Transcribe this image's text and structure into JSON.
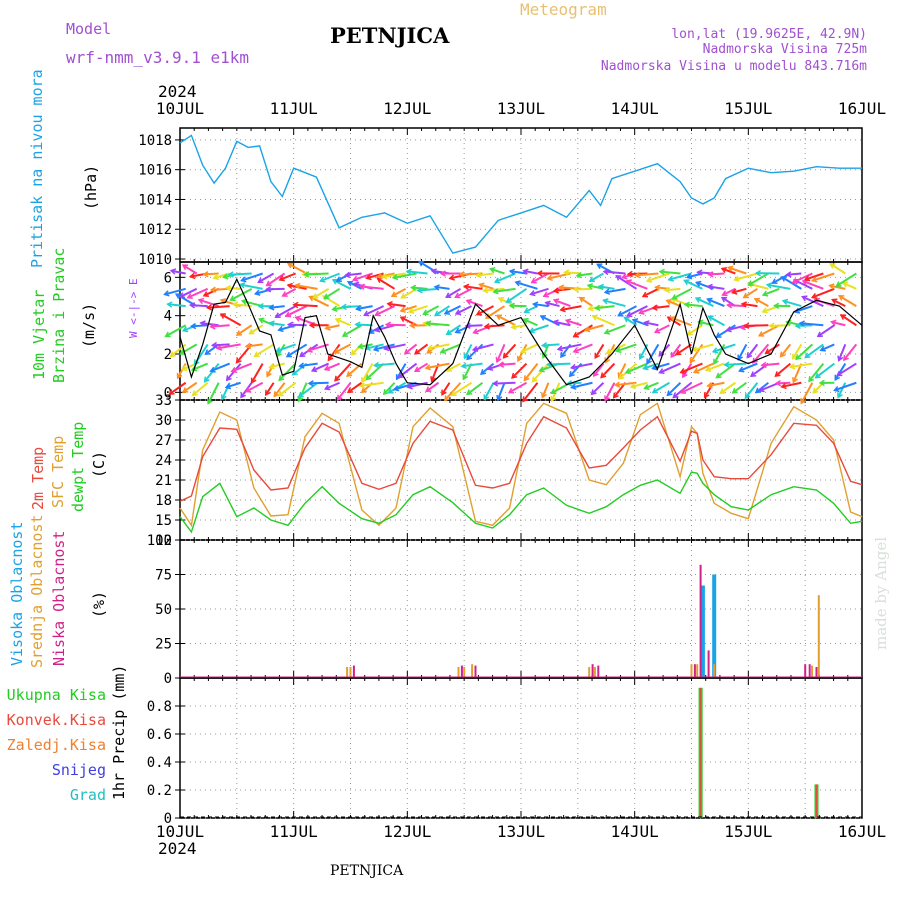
{
  "header": {
    "model_label": "Model",
    "model_name": "wrf-nmm_v3.9.1 e1km",
    "station": "PETNJICA",
    "product": "Meteogram",
    "lonlat": "lon,lat (19.9625E, 42.9N)",
    "elevation": "Nadmorska Visina 725m",
    "model_elevation": "Nadmorska Visina u modelu 843.716m",
    "footer_station": "PETNJICA",
    "credit": "made by Angel",
    "year": "2024"
  },
  "colors": {
    "pressure": "#1aa3e6",
    "wind_speed": "#000000",
    "t2m": "#e84a3c",
    "tsfc": "#e0a030",
    "dewpt": "#22cc22",
    "cloud_high": "#1aa3e6",
    "cloud_mid": "#e0a030",
    "cloud_low": "#d0208a",
    "precip_total": "#22cc22",
    "precip_conv": "#e84a3c"
  },
  "chart_data": [
    {
      "type": "line",
      "panel": "pressure",
      "title": "Pritisak na nivou mora",
      "ylabel": "(hPa)",
      "xlabel_ticks": [
        "10JUL",
        "11JUL",
        "12JUL",
        "13JUL",
        "14JUL",
        "15JUL",
        "16JUL"
      ],
      "ylim": [
        1009.8,
        1018.8
      ],
      "yticks": [
        "1010",
        "1012",
        "1014",
        "1016",
        "1018"
      ],
      "grid": true,
      "series": [
        {
          "name": "Pritisak na nivou mora",
          "x": [
            0,
            0.1,
            0.2,
            0.3,
            0.4,
            0.5,
            0.6,
            0.7,
            0.8,
            0.9,
            1.0,
            1.2,
            1.4,
            1.6,
            1.8,
            2.0,
            2.2,
            2.4,
            2.6,
            2.8,
            3.0,
            3.2,
            3.4,
            3.6,
            3.7,
            3.8,
            4.0,
            4.2,
            4.4,
            4.5,
            4.6,
            4.7,
            4.8,
            5.0,
            5.2,
            5.4,
            5.6,
            5.8,
            6.0
          ],
          "values": [
            1017.8,
            1018.3,
            1016.3,
            1015.1,
            1016.1,
            1017.9,
            1017.5,
            1017.6,
            1015.2,
            1014.2,
            1016.1,
            1015.5,
            1012.1,
            1012.8,
            1013.1,
            1012.4,
            1012.9,
            1010.4,
            1010.8,
            1012.6,
            1013.1,
            1013.6,
            1012.8,
            1014.6,
            1013.6,
            1015.4,
            1015.9,
            1016.4,
            1015.2,
            1014.1,
            1013.7,
            1014.1,
            1015.4,
            1016.1,
            1015.8,
            1015.9,
            1016.2,
            1016.1,
            1016.1
          ]
        }
      ]
    },
    {
      "type": "line",
      "panel": "wind",
      "title": "10m Vjetar Brzina i Pravac",
      "ylabel": "(m/s)",
      "direction_key": "W <-|-> E",
      "ylim": [
        -0.4,
        6.8
      ],
      "yticks": [
        "0",
        "2",
        "4",
        "6"
      ],
      "grid": true,
      "series": [
        {
          "name": "10m Vjetar",
          "x": [
            0,
            0.1,
            0.2,
            0.3,
            0.4,
            0.5,
            0.6,
            0.7,
            0.8,
            0.9,
            1.0,
            1.1,
            1.2,
            1.3,
            1.4,
            1.5,
            1.6,
            1.7,
            1.8,
            1.9,
            2.0,
            2.2,
            2.4,
            2.6,
            2.8,
            3.0,
            3.2,
            3.4,
            3.6,
            3.8,
            4.0,
            4.2,
            4.4,
            4.5,
            4.6,
            4.7,
            4.8,
            5.0,
            5.2,
            5.4,
            5.6,
            5.8,
            6.0
          ],
          "values": [
            2.9,
            0.8,
            2.5,
            4.6,
            4.7,
            5.9,
            4.6,
            3.2,
            3.0,
            0.9,
            1.1,
            3.9,
            4.0,
            2.0,
            1.8,
            1.6,
            1.3,
            4.0,
            2.9,
            1.5,
            0.5,
            0.4,
            1.5,
            4.6,
            3.5,
            3.9,
            2.0,
            0.4,
            0.8,
            2.0,
            3.5,
            1.2,
            4.6,
            2.0,
            4.4,
            3.0,
            2.0,
            1.5,
            2.0,
            4.2,
            4.8,
            4.5,
            3.5
          ]
        }
      ]
    },
    {
      "type": "line",
      "panel": "temperature",
      "ylabel": "(C)",
      "ylim": [
        12,
        33
      ],
      "yticks": [
        "12",
        "15",
        "18",
        "21",
        "24",
        "27",
        "30",
        "33"
      ],
      "grid": true,
      "series": [
        {
          "name": "2m Temp",
          "x": [
            0,
            0.1,
            0.2,
            0.35,
            0.5,
            0.65,
            0.8,
            0.95,
            1.1,
            1.25,
            1.4,
            1.6,
            1.75,
            1.9,
            2.05,
            2.2,
            2.4,
            2.6,
            2.75,
            2.9,
            3.05,
            3.2,
            3.4,
            3.6,
            3.75,
            3.9,
            4.05,
            4.2,
            4.4,
            4.5,
            4.55,
            4.6,
            4.7,
            4.85,
            5.0,
            5.2,
            5.4,
            5.6,
            5.75,
            5.9,
            6.0
          ],
          "values": [
            17.8,
            18.6,
            24.5,
            28.8,
            28.6,
            22.5,
            19.5,
            19.8,
            25.8,
            29.5,
            28.2,
            20.5,
            19.6,
            20.5,
            26.5,
            29.8,
            28.5,
            20.2,
            19.8,
            20.5,
            26.5,
            30.5,
            28.8,
            22.8,
            23.2,
            25.8,
            28.5,
            30.5,
            23.8,
            28.3,
            28.0,
            24.0,
            21.5,
            21.2,
            21.2,
            24.8,
            29.5,
            29.2,
            26.5,
            20.8,
            20.3
          ]
        },
        {
          "name": "SFC Temp",
          "x": [
            0,
            0.1,
            0.2,
            0.35,
            0.5,
            0.65,
            0.8,
            0.95,
            1.1,
            1.25,
            1.4,
            1.6,
            1.75,
            1.9,
            2.05,
            2.2,
            2.4,
            2.6,
            2.75,
            2.9,
            3.05,
            3.2,
            3.4,
            3.6,
            3.75,
            3.9,
            4.05,
            4.2,
            4.4,
            4.5,
            4.55,
            4.6,
            4.7,
            4.85,
            5.0,
            5.2,
            5.4,
            5.6,
            5.75,
            5.9,
            6.0
          ],
          "values": [
            16.8,
            14.2,
            25.5,
            31.2,
            30.0,
            19.8,
            15.6,
            15.8,
            27.5,
            31.0,
            29.5,
            16.5,
            14.2,
            16.8,
            29.0,
            31.8,
            29.0,
            14.8,
            14.2,
            16.8,
            29.5,
            32.5,
            31.0,
            21.0,
            20.3,
            23.5,
            30.8,
            32.5,
            21.5,
            29.0,
            28.0,
            22.0,
            17.5,
            16.0,
            15.2,
            26.5,
            32.0,
            30.0,
            27.0,
            16.2,
            15.5
          ]
        },
        {
          "name": "dewpt Temp",
          "x": [
            0,
            0.1,
            0.2,
            0.35,
            0.5,
            0.65,
            0.8,
            0.95,
            1.1,
            1.25,
            1.4,
            1.6,
            1.75,
            1.9,
            2.05,
            2.2,
            2.4,
            2.6,
            2.75,
            2.9,
            3.05,
            3.2,
            3.4,
            3.6,
            3.75,
            3.9,
            4.05,
            4.2,
            4.4,
            4.5,
            4.55,
            4.6,
            4.7,
            4.85,
            5.0,
            5.2,
            5.4,
            5.6,
            5.75,
            5.9,
            6.0
          ],
          "values": [
            15.5,
            13.2,
            18.5,
            20.5,
            15.5,
            16.8,
            15.0,
            14.2,
            17.5,
            20.0,
            17.5,
            15.2,
            14.5,
            15.8,
            18.8,
            20.0,
            17.6,
            14.5,
            13.8,
            15.8,
            18.8,
            19.8,
            17.2,
            16.0,
            17.0,
            18.8,
            20.2,
            21.0,
            19.0,
            22.2,
            22.0,
            20.5,
            18.8,
            17.0,
            16.5,
            18.8,
            20.0,
            19.5,
            17.5,
            14.5,
            14.8
          ]
        }
      ]
    },
    {
      "type": "bar",
      "panel": "cloud",
      "ylabel": "(%)",
      "ylim": [
        0,
        100
      ],
      "yticks": [
        "0",
        "25",
        "50",
        "75",
        "100"
      ],
      "grid": true,
      "series": [
        {
          "name": "Visoka Oblacnost",
          "x": [
            0.42,
            1.48,
            2.42,
            2.55,
            3.6,
            4.6,
            4.7,
            5.5,
            5.62
          ],
          "values": [
            1,
            0,
            0,
            0,
            0,
            67,
            75,
            0,
            0
          ]
        },
        {
          "name": "Srednja Oblacnost",
          "x": [
            1.47,
            1.5,
            2.45,
            2.5,
            2.57,
            3.6,
            3.65,
            4.5,
            4.55,
            4.7,
            5.56,
            5.62
          ],
          "values": [
            8,
            8,
            8,
            8,
            10,
            8,
            8,
            10,
            10,
            10,
            9,
            60
          ]
        },
        {
          "name": "Niska Oblacnost",
          "x": [
            1.53,
            2.48,
            2.6,
            3.63,
            3.68,
            4.53,
            4.58,
            4.65,
            5.5,
            5.54,
            5.6
          ],
          "values": [
            9,
            9,
            9,
            10,
            9,
            10,
            82,
            20,
            10,
            10,
            8
          ]
        }
      ]
    },
    {
      "type": "bar",
      "panel": "precip",
      "ylabel": "1hr Precip (mm)",
      "ylim": [
        0,
        1.0
      ],
      "yticks": [
        "0",
        "0.2",
        "0.4",
        "0.6",
        "0.8"
      ],
      "grid": true,
      "series": [
        {
          "name": "Ukupna Kisa",
          "x": [
            4.58,
            5.6
          ],
          "values": [
            0.93,
            0.24
          ]
        },
        {
          "name": "Konvek.Kisa",
          "x": [
            4.58,
            5.6
          ],
          "values": [
            0.93,
            0.24
          ]
        },
        {
          "name": "Zaledj.Kisa",
          "x": [],
          "values": []
        },
        {
          "name": "Snijeg",
          "x": [],
          "values": []
        },
        {
          "name": "Grad",
          "x": [],
          "values": []
        }
      ]
    }
  ],
  "wind_barb_levels": [
    0.5,
    1.5,
    2.5,
    3.5,
    4.5,
    5.4,
    6.2
  ],
  "wind_barb_colors": [
    "#ff2020",
    "#ff9020",
    "#e8e020",
    "#40e040",
    "#20d0d0",
    "#2080ff",
    "#a040ff",
    "#ff40c0"
  ],
  "left_labels": {
    "p1": "Pritisak na nivou mora",
    "p2a": "10m Vjetar",
    "p2b": "Brzina i Pravac",
    "p3a": "2m Temp",
    "p3b": "SFC Temp",
    "p3c": "dewpt Temp",
    "p4a": "Visoka Oblacnost",
    "p4b": "Srednja Oblacnost",
    "p4c": "Niska Oblacnost",
    "l1": "Ukupna Kisa",
    "l2": "Konvek.Kisa",
    "l3": "Zaledj.Kisa",
    "l4": "Snijeg",
    "l5": "Grad"
  }
}
